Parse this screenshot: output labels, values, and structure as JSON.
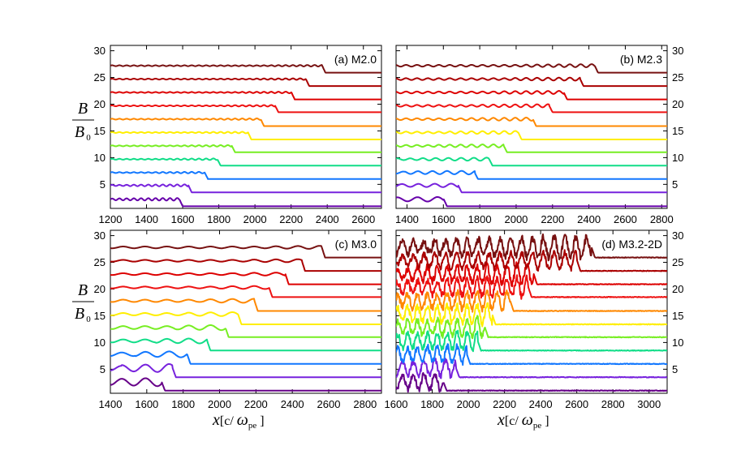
{
  "chart_data": [
    {
      "type": "line",
      "panel_label": "(a) M2.0",
      "xlim": [
        1200,
        2700
      ],
      "ylim": [
        0.5,
        31
      ],
      "x_ticks": [
        1200,
        1400,
        1600,
        1800,
        2000,
        2200,
        2400,
        2600
      ],
      "x_tick_labels": [
        "1200",
        "1400",
        "1600",
        "1800",
        "2000",
        "2200",
        "2400",
        "2600"
      ],
      "y_ticks": [
        5,
        10,
        15,
        20,
        25,
        30
      ],
      "y_tick_labels": [
        "5",
        "10",
        "15",
        "20",
        "25",
        "30"
      ],
      "y_ticks_side": "left",
      "y_tick_labels_shown": true,
      "x_tick_labels_shown": true,
      "grid": false,
      "series": [
        {
          "color": "#6600aa",
          "up_level": 2.2,
          "down_level": 0.9,
          "shock_x": 1600,
          "ripple": 0.25,
          "ripple_period": 40,
          "ripple_width": 380
        },
        {
          "color": "#7722dd",
          "up_level": 4.8,
          "down_level": 3.5,
          "shock_x": 1650,
          "ripple": 0.2,
          "ripple_period": 40,
          "ripple_width": 350
        },
        {
          "color": "#1177ff",
          "up_level": 7.2,
          "down_level": 6.0,
          "shock_x": 1740,
          "ripple": 0.15,
          "ripple_period": 40,
          "ripple_width": 300
        },
        {
          "color": "#11dd88",
          "up_level": 9.7,
          "down_level": 8.5,
          "shock_x": 1810,
          "ripple": 0.15,
          "ripple_period": 40,
          "ripple_width": 300
        },
        {
          "color": "#77ee22",
          "up_level": 12.2,
          "down_level": 11.0,
          "shock_x": 1890,
          "ripple": 0.15,
          "ripple_period": 40,
          "ripple_width": 300
        },
        {
          "color": "#ffee00",
          "up_level": 14.7,
          "down_level": 13.4,
          "shock_x": 1980,
          "ripple": 0.15,
          "ripple_period": 40,
          "ripple_width": 300
        },
        {
          "color": "#ff8800",
          "up_level": 17.2,
          "down_level": 15.9,
          "shock_x": 2050,
          "ripple": 0.15,
          "ripple_period": 40,
          "ripple_width": 300
        },
        {
          "color": "#ee1111",
          "up_level": 19.7,
          "down_level": 18.5,
          "shock_x": 2130,
          "ripple": 0.15,
          "ripple_period": 40,
          "ripple_width": 300
        },
        {
          "color": "#dd0000",
          "up_level": 22.2,
          "down_level": 20.9,
          "shock_x": 2220,
          "ripple": 0.15,
          "ripple_period": 40,
          "ripple_width": 300
        },
        {
          "color": "#aa0000",
          "up_level": 24.7,
          "down_level": 23.4,
          "shock_x": 2300,
          "ripple": 0.15,
          "ripple_period": 40,
          "ripple_width": 300
        },
        {
          "color": "#771111",
          "up_level": 27.2,
          "down_level": 25.9,
          "shock_x": 2390,
          "ripple": 0.15,
          "ripple_period": 40,
          "ripple_width": 300
        }
      ]
    },
    {
      "type": "line",
      "panel_label": "(b) M2.3",
      "xlim": [
        1340,
        2830
      ],
      "ylim": [
        0.5,
        31
      ],
      "x_ticks": [
        1400,
        1600,
        1800,
        2000,
        2200,
        2400,
        2600,
        2800
      ],
      "x_tick_labels": [
        "1400",
        "1600",
        "1800",
        "2000",
        "2200",
        "2400",
        "2600",
        "2800"
      ],
      "y_ticks": [
        5,
        10,
        15,
        20,
        25,
        30
      ],
      "y_tick_labels": [
        "5",
        "10",
        "15",
        "20",
        "25",
        "30"
      ],
      "y_ticks_side": "right",
      "y_tick_labels_shown": true,
      "x_tick_labels_shown": true,
      "grid": false,
      "series": [
        {
          "color": "#6600aa",
          "up_level": 2.2,
          "down_level": 0.9,
          "shock_x": 1620,
          "ripple": 0.45,
          "ripple_period": 110,
          "ripple_width": 400
        },
        {
          "color": "#7722dd",
          "up_level": 4.8,
          "down_level": 3.5,
          "shock_x": 1700,
          "ripple": 0.35,
          "ripple_period": 90,
          "ripple_width": 400
        },
        {
          "color": "#1177ff",
          "up_level": 7.2,
          "down_level": 6.0,
          "shock_x": 1790,
          "ripple": 0.35,
          "ripple_period": 80,
          "ripple_width": 400
        },
        {
          "color": "#11dd88",
          "up_level": 9.7,
          "down_level": 8.5,
          "shock_x": 1870,
          "ripple": 0.3,
          "ripple_period": 70,
          "ripple_width": 400
        },
        {
          "color": "#77ee22",
          "up_level": 12.2,
          "down_level": 11.0,
          "shock_x": 1950,
          "ripple": 0.3,
          "ripple_period": 60,
          "ripple_width": 400
        },
        {
          "color": "#ffee00",
          "up_level": 14.7,
          "down_level": 13.4,
          "shock_x": 2030,
          "ripple": 0.3,
          "ripple_period": 60,
          "ripple_width": 400
        },
        {
          "color": "#ff8800",
          "up_level": 17.2,
          "down_level": 15.9,
          "shock_x": 2110,
          "ripple": 0.3,
          "ripple_period": 60,
          "ripple_width": 400
        },
        {
          "color": "#ee1111",
          "up_level": 19.7,
          "down_level": 18.5,
          "shock_x": 2200,
          "ripple": 0.3,
          "ripple_period": 60,
          "ripple_width": 400
        },
        {
          "color": "#dd0000",
          "up_level": 22.2,
          "down_level": 20.9,
          "shock_x": 2280,
          "ripple": 0.3,
          "ripple_period": 60,
          "ripple_width": 400
        },
        {
          "color": "#aa0000",
          "up_level": 24.7,
          "down_level": 23.4,
          "shock_x": 2370,
          "ripple": 0.3,
          "ripple_period": 60,
          "ripple_width": 400
        },
        {
          "color": "#771111",
          "up_level": 27.2,
          "down_level": 25.9,
          "shock_x": 2450,
          "ripple": 0.3,
          "ripple_period": 60,
          "ripple_width": 400
        }
      ]
    },
    {
      "type": "line",
      "panel_label": "(c) M3.0",
      "xlim": [
        1400,
        2890
      ],
      "ylim": [
        0.5,
        31
      ],
      "x_ticks": [
        1400,
        1600,
        1800,
        2000,
        2200,
        2400,
        2600,
        2800
      ],
      "x_tick_labels": [
        "1400",
        "1600",
        "1800",
        "2000",
        "2200",
        "2400",
        "2600",
        "2800"
      ],
      "y_ticks": [
        5,
        10,
        15,
        20,
        25,
        30
      ],
      "y_tick_labels": [
        "5",
        "10",
        "15",
        "20",
        "25",
        "30"
      ],
      "y_ticks_side": "left",
      "y_tick_labels_shown": true,
      "x_tick_labels_shown": true,
      "grid": false,
      "series": [
        {
          "color": "#660088",
          "up_level": 2.6,
          "down_level": 1.0,
          "shock_x": 1700,
          "ripple": 0.8,
          "ripple_period": 130,
          "ripple_width": 300
        },
        {
          "color": "#7722dd",
          "up_level": 5.2,
          "down_level": 3.5,
          "shock_x": 1760,
          "ripple": 0.8,
          "ripple_period": 130,
          "ripple_width": 300
        },
        {
          "color": "#1177ff",
          "up_level": 7.8,
          "down_level": 6.0,
          "shock_x": 1840,
          "ripple": 0.6,
          "ripple_period": 130,
          "ripple_width": 300
        },
        {
          "color": "#11dd88",
          "up_level": 10.3,
          "down_level": 8.5,
          "shock_x": 1950,
          "ripple": 0.5,
          "ripple_period": 120,
          "ripple_width": 300
        },
        {
          "color": "#77ee22",
          "up_level": 12.8,
          "down_level": 11.0,
          "shock_x": 2050,
          "ripple": 0.5,
          "ripple_period": 120,
          "ripple_width": 300
        },
        {
          "color": "#ffee00",
          "up_level": 15.3,
          "down_level": 13.4,
          "shock_x": 2120,
          "ripple": 0.4,
          "ripple_period": 120,
          "ripple_width": 300
        },
        {
          "color": "#ff8800",
          "up_level": 17.8,
          "down_level": 15.9,
          "shock_x": 2210,
          "ripple": 0.4,
          "ripple_period": 120,
          "ripple_width": 300
        },
        {
          "color": "#ee1111",
          "up_level": 20.3,
          "down_level": 18.5,
          "shock_x": 2290,
          "ripple": 0.3,
          "ripple_period": 120,
          "ripple_width": 300
        },
        {
          "color": "#dd0000",
          "up_level": 22.8,
          "down_level": 20.9,
          "shock_x": 2380,
          "ripple": 0.3,
          "ripple_period": 120,
          "ripple_width": 300
        },
        {
          "color": "#aa0000",
          "up_level": 25.3,
          "down_level": 23.4,
          "shock_x": 2470,
          "ripple": 0.3,
          "ripple_period": 120,
          "ripple_width": 300
        },
        {
          "color": "#771111",
          "up_level": 27.8,
          "down_level": 25.9,
          "shock_x": 2580,
          "ripple": 0.3,
          "ripple_period": 120,
          "ripple_width": 300
        }
      ]
    },
    {
      "type": "line",
      "panel_label": "(d) M3.2-2D",
      "xlim": [
        1600,
        3100
      ],
      "ylim": [
        0.5,
        31
      ],
      "x_ticks": [
        1600,
        1800,
        2000,
        2200,
        2400,
        2600,
        2800,
        3000
      ],
      "x_tick_labels": [
        "1600",
        "1800",
        "2000",
        "2200",
        "2400",
        "2600",
        "2800",
        "3000"
      ],
      "y_ticks": [
        5,
        10,
        15,
        20,
        25,
        30
      ],
      "y_tick_labels": [
        "5",
        "10",
        "15",
        "20",
        "25",
        "30"
      ],
      "y_ticks_side": "right",
      "y_tick_labels_shown": true,
      "x_tick_labels_shown": true,
      "grid": false,
      "series": [
        {
          "color": "#660088",
          "up_level": 2.6,
          "down_level": 1.0,
          "shock_x": 1880,
          "ripple": 1.6,
          "ripple_period": 60,
          "ripple_width": 400
        },
        {
          "color": "#7722dd",
          "up_level": 5.2,
          "down_level": 3.5,
          "shock_x": 1950,
          "ripple": 1.6,
          "ripple_period": 60,
          "ripple_width": 400
        },
        {
          "color": "#1177ff",
          "up_level": 7.8,
          "down_level": 6.0,
          "shock_x": 2010,
          "ripple": 1.6,
          "ripple_period": 55,
          "ripple_width": 450
        },
        {
          "color": "#11dd88",
          "up_level": 10.3,
          "down_level": 8.5,
          "shock_x": 2070,
          "ripple": 1.7,
          "ripple_period": 55,
          "ripple_width": 480
        },
        {
          "color": "#77ee22",
          "up_level": 12.8,
          "down_level": 11.0,
          "shock_x": 2110,
          "ripple": 1.7,
          "ripple_period": 55,
          "ripple_width": 520
        },
        {
          "color": "#ffee00",
          "up_level": 15.3,
          "down_level": 13.4,
          "shock_x": 2150,
          "ripple": 1.8,
          "ripple_period": 55,
          "ripple_width": 560
        },
        {
          "color": "#ff8800",
          "up_level": 17.8,
          "down_level": 15.9,
          "shock_x": 2250,
          "ripple": 1.8,
          "ripple_period": 55,
          "ripple_width": 600
        },
        {
          "color": "#ee1111",
          "up_level": 20.3,
          "down_level": 18.5,
          "shock_x": 2350,
          "ripple": 1.8,
          "ripple_period": 55,
          "ripple_width": 650
        },
        {
          "color": "#dd0000",
          "up_level": 22.8,
          "down_level": 20.9,
          "shock_x": 2380,
          "ripple": 1.8,
          "ripple_period": 55,
          "ripple_width": 700
        },
        {
          "color": "#aa0000",
          "up_level": 25.3,
          "down_level": 23.4,
          "shock_x": 2620,
          "ripple": 1.6,
          "ripple_period": 60,
          "ripple_width": 900
        },
        {
          "color": "#771111",
          "up_level": 27.8,
          "down_level": 25.9,
          "shock_x": 2700,
          "ripple": 2.0,
          "ripple_period": 60,
          "ripple_width": 900
        }
      ]
    }
  ],
  "axes": {
    "y_label_num": "B",
    "y_label_den": "B",
    "y_label_den_sub": "0",
    "x_label_var": "x",
    "x_label_open": "[c/ ",
    "x_label_omega": "ω",
    "x_label_sub": "pe",
    "x_label_close": " ]"
  }
}
